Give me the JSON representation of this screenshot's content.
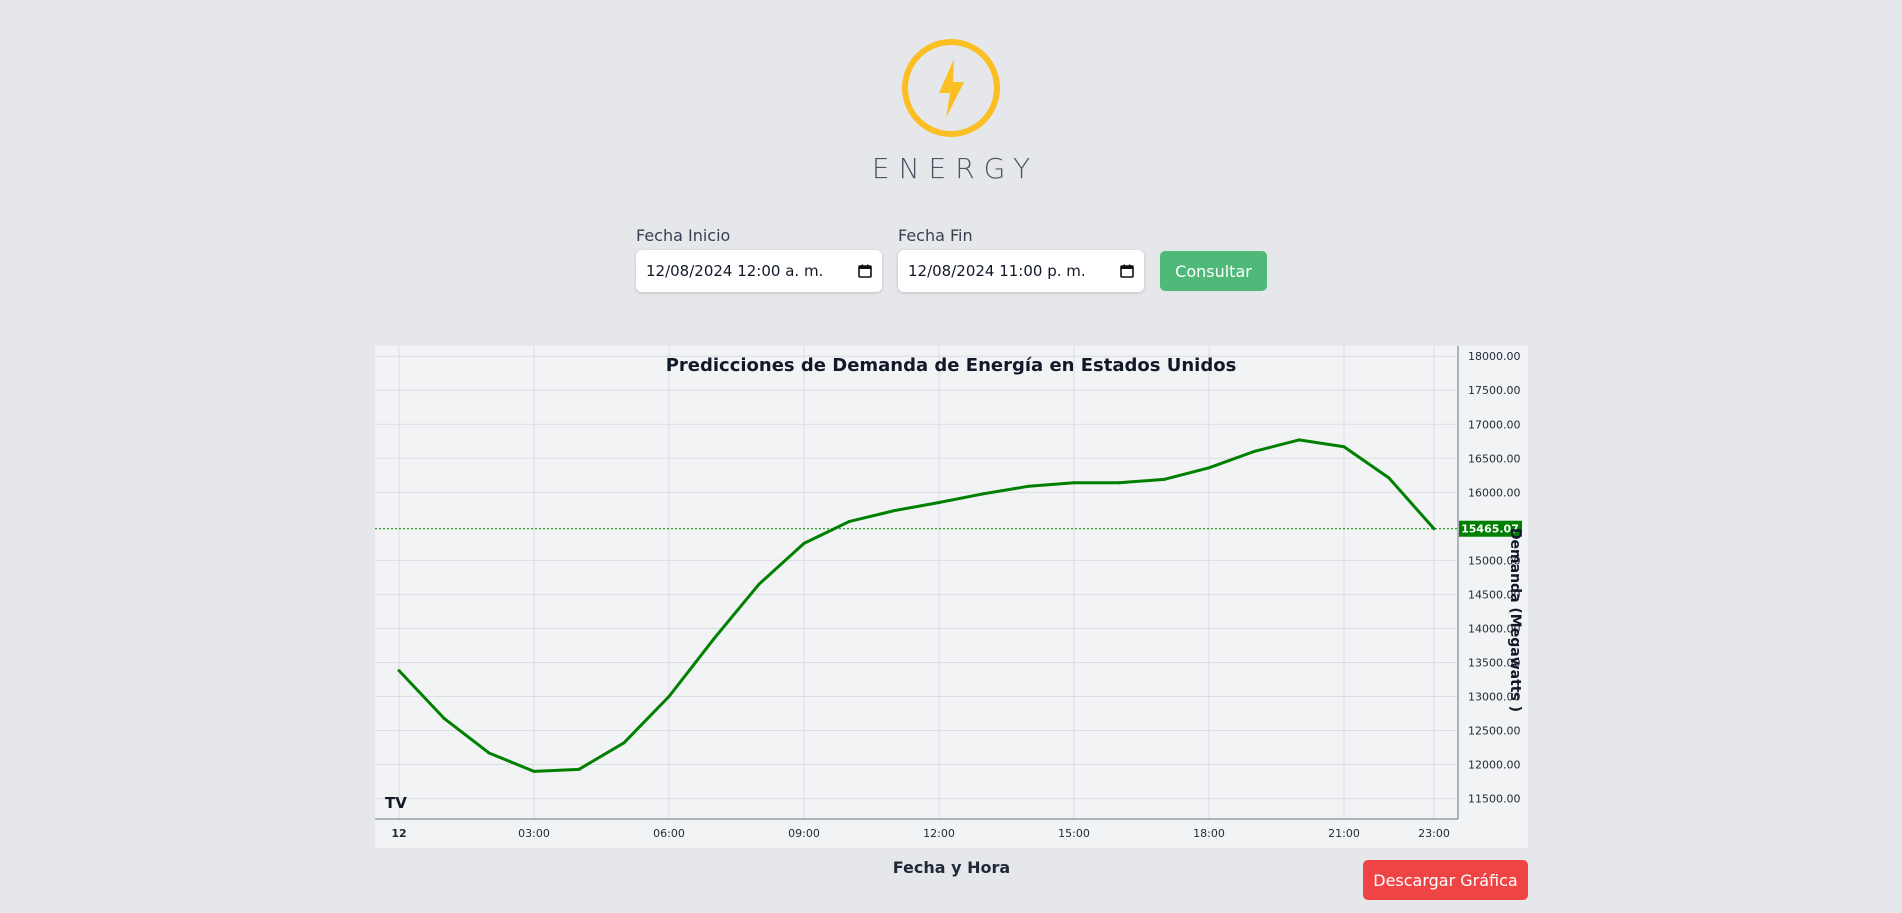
{
  "brand": {
    "name": "ENERGY",
    "logo_icon": "lightning-bolt-icon",
    "logo_color": "#fbbf24"
  },
  "filters": {
    "start": {
      "label": "Fecha Inicio",
      "value": "12/08/2024 12:00  a. m."
    },
    "end": {
      "label": "Fecha Fin",
      "value": "12/08/2024 11:00  p. m."
    },
    "submit_label": "Consultar",
    "submit_color": "#4fb97a"
  },
  "chart_data": {
    "type": "line",
    "title": "Predicciones de Demanda de Energía en Estados Unidos",
    "xlabel": "Fecha y Hora",
    "ylabel": "Demanda (Megawatts )",
    "x": [
      "00:00",
      "01:00",
      "02:00",
      "03:00",
      "04:00",
      "05:00",
      "06:00",
      "07:00",
      "08:00",
      "09:00",
      "10:00",
      "11:00",
      "12:00",
      "13:00",
      "14:00",
      "15:00",
      "16:00",
      "17:00",
      "18:00",
      "19:00",
      "20:00",
      "21:00",
      "22:00",
      "23:00"
    ],
    "series": [
      {
        "values": [
          13380,
          12680,
          12170,
          11900,
          11930,
          12320,
          13000,
          13850,
          14650,
          15250,
          15570,
          15730,
          15850,
          15980,
          16090,
          16140,
          16140,
          16190,
          16360,
          16600,
          16770,
          16670,
          16210,
          15465.07
        ],
        "color": "#008000"
      }
    ],
    "x_tick_labels": [
      "12",
      "03:00",
      "06:00",
      "09:00",
      "12:00",
      "15:00",
      "18:00",
      "21:00",
      "23:00"
    ],
    "y_tick_labels": [
      "18000.00",
      "17500.00",
      "17000.00",
      "16500.00",
      "16000.00",
      "15000.00",
      "14500.00",
      "14000.00",
      "13500.00",
      "13000.00",
      "12500.00",
      "12000.00",
      "11500.00"
    ],
    "ylim": [
      11200,
      18150
    ],
    "last_value_label": "15465.07",
    "grid": true,
    "watermark": "TV"
  },
  "download_label": "Descargar Gráfica",
  "download_color": "#ef4444"
}
